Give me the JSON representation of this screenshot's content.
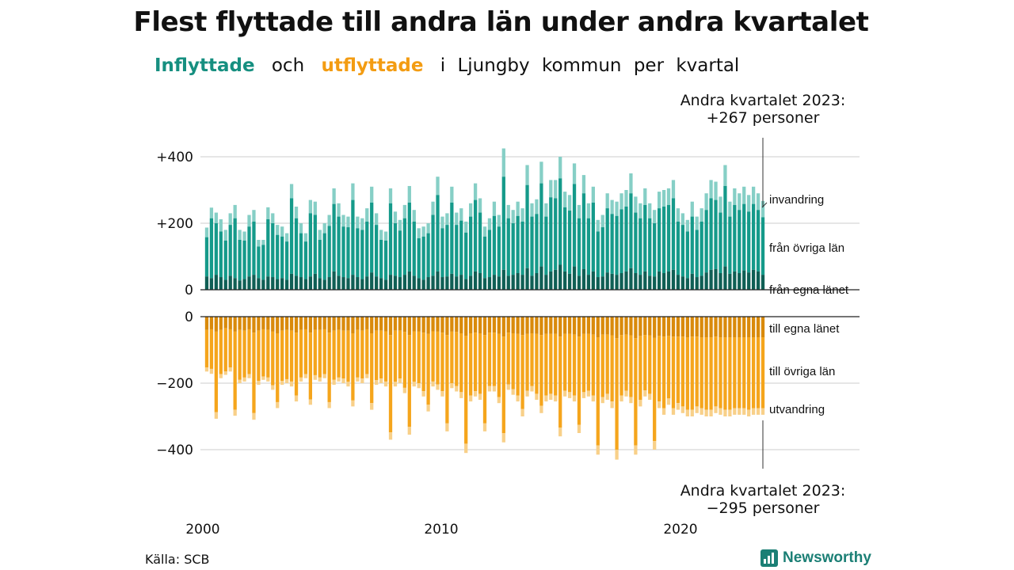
{
  "title": "Flest flyttade till andra län under andra kvartalet",
  "subtitle": {
    "inflow_word": "Inflyttade",
    "and_word": "och",
    "outflow_word": "utflyttade",
    "rest": [
      "i",
      "Ljungby",
      "kommun",
      "per",
      "kvartal"
    ]
  },
  "source": "Källa: SCB",
  "logo_text": "Newsworthy",
  "colors": {
    "own_county_in": "#0f5f55",
    "other_counties_in": "#159a8a",
    "immigration": "#86cfc6",
    "own_county_out": "#d98a0b",
    "other_counties_out": "#f5a51c",
    "emigration": "#f8d089",
    "grid": "#dddddd"
  },
  "chart_data": {
    "type": "bar",
    "stacked": true,
    "diverging": true,
    "x_ticks": [
      "2000",
      "2010",
      "2020"
    ],
    "y_ticks_top": [
      "+400",
      "+200",
      "0"
    ],
    "y_ticks_bottom": [
      "0",
      "−200",
      "−400"
    ],
    "ylim_top": [
      0,
      460
    ],
    "ylim_bottom": [
      -460,
      0
    ],
    "grid": true,
    "series_labels_in": [
      "invandring",
      "från övriga län",
      "från egna länet"
    ],
    "series_labels_out": [
      "till egna länet",
      "till övriga län",
      "utvandring"
    ],
    "annotation_top": [
      "Andra kvartalet 2023:",
      "+267 personer"
    ],
    "annotation_bottom": [
      "Andra kvartalet 2023:",
      "−295 personer"
    ],
    "quarters_start": "2000 Q1",
    "inflow_total": [
      187,
      247,
      232,
      212,
      180,
      230,
      255,
      180,
      175,
      225,
      240,
      150,
      150,
      248,
      230,
      195,
      190,
      170,
      318,
      250,
      200,
      170,
      270,
      265,
      180,
      200,
      225,
      305,
      260,
      225,
      220,
      320,
      220,
      215,
      245,
      310,
      230,
      180,
      175,
      305,
      235,
      210,
      255,
      312,
      240,
      185,
      190,
      200,
      265,
      340,
      220,
      230,
      310,
      232,
      245,
      205,
      260,
      320,
      275,
      190,
      215,
      265,
      225,
      425,
      255,
      240,
      265,
      245,
      375,
      260,
      272,
      385,
      260,
      330,
      330,
      400,
      295,
      285,
      380,
      255,
      345,
      260,
      310,
      210,
      225,
      290,
      270,
      265,
      290,
      300,
      350,
      280,
      260,
      305,
      260,
      240,
      295,
      300,
      305,
      330,
      245,
      230,
      210,
      265,
      220,
      245,
      290,
      330,
      325,
      280,
      375,
      265,
      305,
      290,
      310,
      285,
      310,
      290,
      267
    ],
    "inflow_other": [
      158,
      215,
      200,
      175,
      148,
      195,
      215,
      150,
      148,
      190,
      205,
      130,
      135,
      212,
      200,
      165,
      160,
      145,
      275,
      215,
      170,
      145,
      230,
      225,
      150,
      170,
      192,
      258,
      220,
      190,
      188,
      270,
      185,
      180,
      205,
      262,
      195,
      150,
      148,
      260,
      200,
      178,
      215,
      262,
      205,
      155,
      160,
      170,
      225,
      285,
      185,
      195,
      262,
      195,
      208,
      172,
      220,
      270,
      232,
      160,
      180,
      222,
      190,
      340,
      215,
      200,
      222,
      205,
      315,
      220,
      228,
      320,
      220,
      278,
      275,
      335,
      248,
      238,
      318,
      215,
      290,
      215,
      262,
      175,
      188,
      245,
      228,
      222,
      242,
      250,
      290,
      232,
      215,
      255,
      215,
      200,
      245,
      250,
      255,
      275,
      205,
      195,
      175,
      220,
      180,
      205,
      240,
      275,
      270,
      232,
      312,
      220,
      255,
      240,
      258,
      235,
      258,
      240,
      218
    ],
    "inflow_own": [
      40,
      35,
      45,
      38,
      30,
      42,
      35,
      28,
      32,
      40,
      45,
      35,
      30,
      40,
      38,
      32,
      35,
      30,
      48,
      42,
      38,
      32,
      40,
      48,
      35,
      30,
      38,
      55,
      42,
      38,
      35,
      45,
      38,
      32,
      40,
      52,
      40,
      35,
      30,
      45,
      42,
      38,
      45,
      55,
      42,
      35,
      30,
      38,
      42,
      55,
      38,
      40,
      48,
      40,
      45,
      32,
      42,
      55,
      50,
      35,
      38,
      45,
      40,
      60,
      42,
      45,
      50,
      45,
      65,
      42,
      50,
      70,
      45,
      55,
      60,
      75,
      55,
      48,
      70,
      42,
      62,
      45,
      55,
      38,
      40,
      52,
      48,
      45,
      50,
      55,
      65,
      50,
      45,
      55,
      42,
      40,
      55,
      50,
      55,
      60,
      45,
      40,
      35,
      48,
      38,
      42,
      52,
      60,
      62,
      50,
      70,
      48,
      55,
      50,
      58,
      52,
      60,
      55,
      45
    ],
    "outflow_total": [
      -165,
      -172,
      -307,
      -185,
      -175,
      -165,
      -298,
      -200,
      -195,
      -185,
      -310,
      -205,
      -190,
      -195,
      -220,
      -275,
      -205,
      -200,
      -210,
      -255,
      -195,
      -185,
      -265,
      -190,
      -195,
      -185,
      -275,
      -205,
      -195,
      -200,
      -210,
      -270,
      -195,
      -200,
      -185,
      -280,
      -205,
      -200,
      -210,
      -370,
      -210,
      -200,
      -230,
      -355,
      -210,
      -215,
      -240,
      -285,
      -210,
      -220,
      -240,
      -345,
      -215,
      -225,
      -245,
      -410,
      -255,
      -240,
      -250,
      -345,
      -225,
      -225,
      -260,
      -378,
      -220,
      -235,
      -255,
      -300,
      -240,
      -225,
      -250,
      -290,
      -255,
      -250,
      -255,
      -360,
      -240,
      -245,
      -255,
      -350,
      -245,
      -240,
      -255,
      -415,
      -260,
      -250,
      -275,
      -430,
      -255,
      -240,
      -260,
      -415,
      -270,
      -240,
      -250,
      -400,
      -275,
      -295,
      -265,
      -295,
      -280,
      -290,
      -300,
      -300,
      -290,
      -295,
      -300,
      -300,
      -290,
      -295,
      -300,
      -300,
      -295,
      -295,
      -295,
      -300,
      -295,
      -295,
      -295
    ],
    "outflow_emigration": [
      -12,
      -15,
      -20,
      -12,
      -10,
      -12,
      -18,
      -10,
      -12,
      -12,
      -20,
      -12,
      -10,
      -12,
      -14,
      -18,
      -12,
      -12,
      -15,
      -18,
      -12,
      -12,
      -16,
      -14,
      -12,
      -12,
      -18,
      -15,
      -12,
      -14,
      -14,
      -18,
      -12,
      -14,
      -12,
      -20,
      -14,
      -14,
      -15,
      -22,
      -14,
      -14,
      -16,
      -24,
      -14,
      -15,
      -16,
      -20,
      -15,
      -16,
      -16,
      -24,
      -15,
      -16,
      -18,
      -28,
      -18,
      -16,
      -18,
      -24,
      -16,
      -16,
      -18,
      -28,
      -16,
      -17,
      -18,
      -22,
      -17,
      -16,
      -18,
      -22,
      -18,
      -18,
      -18,
      -26,
      -17,
      -18,
      -18,
      -25,
      -18,
      -17,
      -18,
      -28,
      -18,
      -18,
      -20,
      -30,
      -18,
      -17,
      -18,
      -28,
      -20,
      -18,
      -18,
      -26,
      -20,
      -20,
      -19,
      -20,
      -20,
      -20,
      -20,
      -20,
      -20,
      -20,
      -20,
      -20,
      -20,
      -20,
      -20,
      -20,
      -20,
      -20,
      -20,
      -20,
      -20,
      -20,
      -20
    ],
    "outflow_own": [
      -40,
      -38,
      -45,
      -40,
      -35,
      -38,
      -45,
      -40,
      -42,
      -38,
      -48,
      -42,
      -38,
      -40,
      -45,
      -50,
      -42,
      -40,
      -42,
      -48,
      -40,
      -38,
      -48,
      -40,
      -40,
      -38,
      -48,
      -42,
      -40,
      -42,
      -42,
      -50,
      -40,
      -42,
      -38,
      -50,
      -42,
      -42,
      -44,
      -55,
      -42,
      -42,
      -46,
      -55,
      -44,
      -45,
      -48,
      -52,
      -44,
      -45,
      -48,
      -55,
      -45,
      -46,
      -50,
      -58,
      -50,
      -48,
      -50,
      -55,
      -48,
      -48,
      -52,
      -60,
      -48,
      -50,
      -52,
      -55,
      -52,
      -50,
      -52,
      -55,
      -52,
      -52,
      -52,
      -60,
      -52,
      -52,
      -54,
      -60,
      -52,
      -52,
      -54,
      -62,
      -54,
      -54,
      -56,
      -65,
      -55,
      -54,
      -56,
      -65,
      -58,
      -55,
      -56,
      -64,
      -58,
      -60,
      -58,
      -60,
      -60,
      -60,
      -62,
      -60,
      -60,
      -62,
      -62,
      -62,
      -60,
      -62,
      -62,
      -62,
      -62,
      -62,
      -62,
      -62,
      -62,
      -62,
      -62
    ]
  }
}
